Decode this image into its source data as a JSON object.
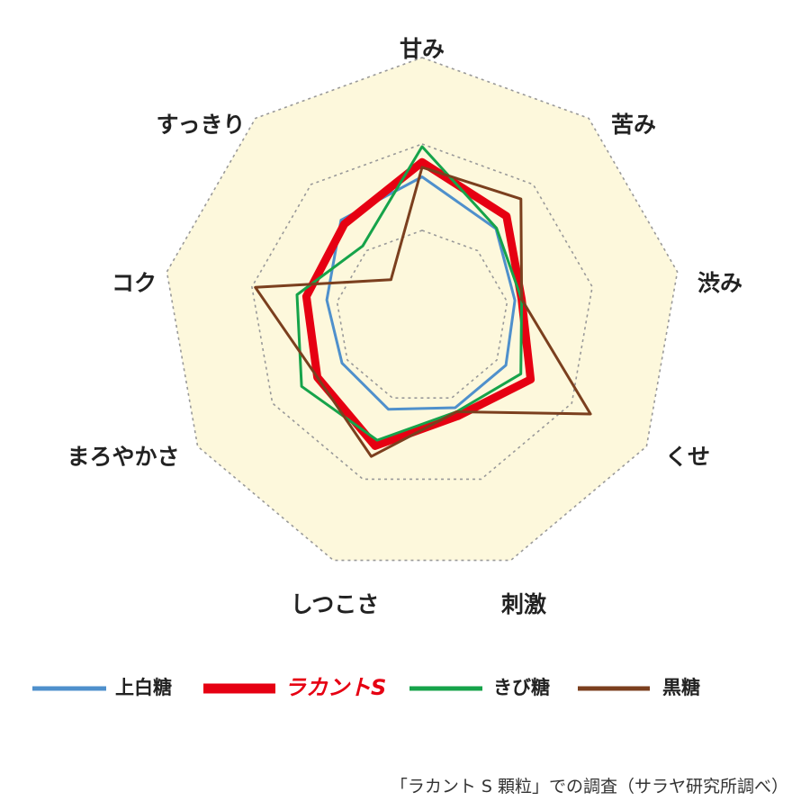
{
  "chart_data": {
    "type": "radar",
    "axes": [
      "甘み",
      "苦み",
      "渋み",
      "くせ",
      "刺激",
      "しつこさ",
      "まろやかさ",
      "コク",
      "すっきり"
    ],
    "rlim": [
      0,
      3
    ],
    "rings": 3,
    "background_color": "#fdf8dc",
    "grid_color": "#999999",
    "series": [
      {
        "name": "上白糖",
        "color": "#4f90cc",
        "values": [
          1.62,
          1.33,
          1.09,
          1.12,
          1.12,
          1.14,
          1.07,
          1.12,
          1.46
        ]
      },
      {
        "name": "ラカントS",
        "color": "#e60012",
        "values": [
          1.79,
          1.52,
          1.17,
          1.45,
          1.22,
          1.59,
          1.4,
          1.36,
          1.4
        ]
      },
      {
        "name": "きび糖",
        "color": "#16a34a",
        "values": [
          1.97,
          1.34,
          1.17,
          1.32,
          1.17,
          1.52,
          1.61,
          1.47,
          1.07
        ]
      },
      {
        "name": "黒糖",
        "color": "#7b3f1e",
        "values": [
          1.73,
          1.78,
          1.17,
          2.25,
          1.17,
          1.72,
          1.4,
          1.96,
          0.56
        ]
      }
    ],
    "legend_position": "bottom",
    "note": "「ラカント S 顆粒」での調査（サラヤ研究所調べ）"
  }
}
